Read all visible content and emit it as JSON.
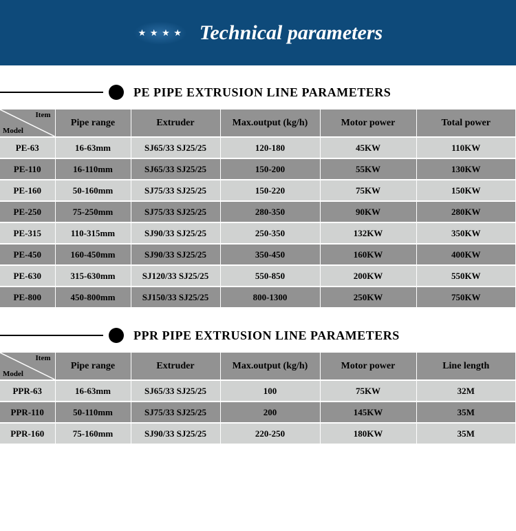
{
  "banner": {
    "title": "Technical parameters"
  },
  "sections": [
    {
      "title": "PE PIPE EXTRUSION LINE  PARAMETERS",
      "diag": {
        "top": "Item",
        "bottom": "Model"
      },
      "columns": [
        "Pipe range",
        "Extruder",
        "Max.output (kg/h)",
        "Motor power",
        "Total power"
      ],
      "rows": [
        [
          "PE-63",
          "16-63mm",
          "SJ65/33 SJ25/25",
          "120-180",
          "45KW",
          "110KW"
        ],
        [
          "PE-110",
          "16-110mm",
          "SJ65/33 SJ25/25",
          "150-200",
          "55KW",
          "130KW"
        ],
        [
          "PE-160",
          "50-160mm",
          "SJ75/33 SJ25/25",
          "150-220",
          "75KW",
          "150KW"
        ],
        [
          "PE-250",
          "75-250mm",
          "SJ75/33 SJ25/25",
          "280-350",
          "90KW",
          "280KW"
        ],
        [
          "PE-315",
          "110-315mm",
          "SJ90/33 SJ25/25",
          "250-350",
          "132KW",
          "350KW"
        ],
        [
          "PE-450",
          "160-450mm",
          "SJ90/33 SJ25/25",
          "350-450",
          "160KW",
          "400KW"
        ],
        [
          "PE-630",
          "315-630mm",
          "SJ120/33 SJ25/25",
          "550-850",
          "200KW",
          "550KW"
        ],
        [
          "PE-800",
          "450-800mm",
          "SJ150/33 SJ25/25",
          "800-1300",
          "250KW",
          "750KW"
        ]
      ]
    },
    {
      "title": "PPR PIPE EXTRUSION LINE  PARAMETERS",
      "diag": {
        "top": "Item",
        "bottom": "Model"
      },
      "columns": [
        "Pipe range",
        "Extruder",
        "Max.output (kg/h)",
        "Motor power",
        "Line length"
      ],
      "rows": [
        [
          "PPR-63",
          "16-63mm",
          "SJ65/33 SJ25/25",
          "100",
          "75KW",
          "32M"
        ],
        [
          "PPR-110",
          "50-110mm",
          "SJ75/33 SJ25/25",
          "200",
          "145KW",
          "35M"
        ],
        [
          "PPR-160",
          "75-160mm",
          "SJ90/33 SJ25/25",
          "220-250",
          "180KW",
          "35M"
        ]
      ]
    }
  ],
  "colors": {
    "banner_bg": "#0e4a7a",
    "row_light": "#d0d2d1",
    "row_dark": "#929292"
  }
}
